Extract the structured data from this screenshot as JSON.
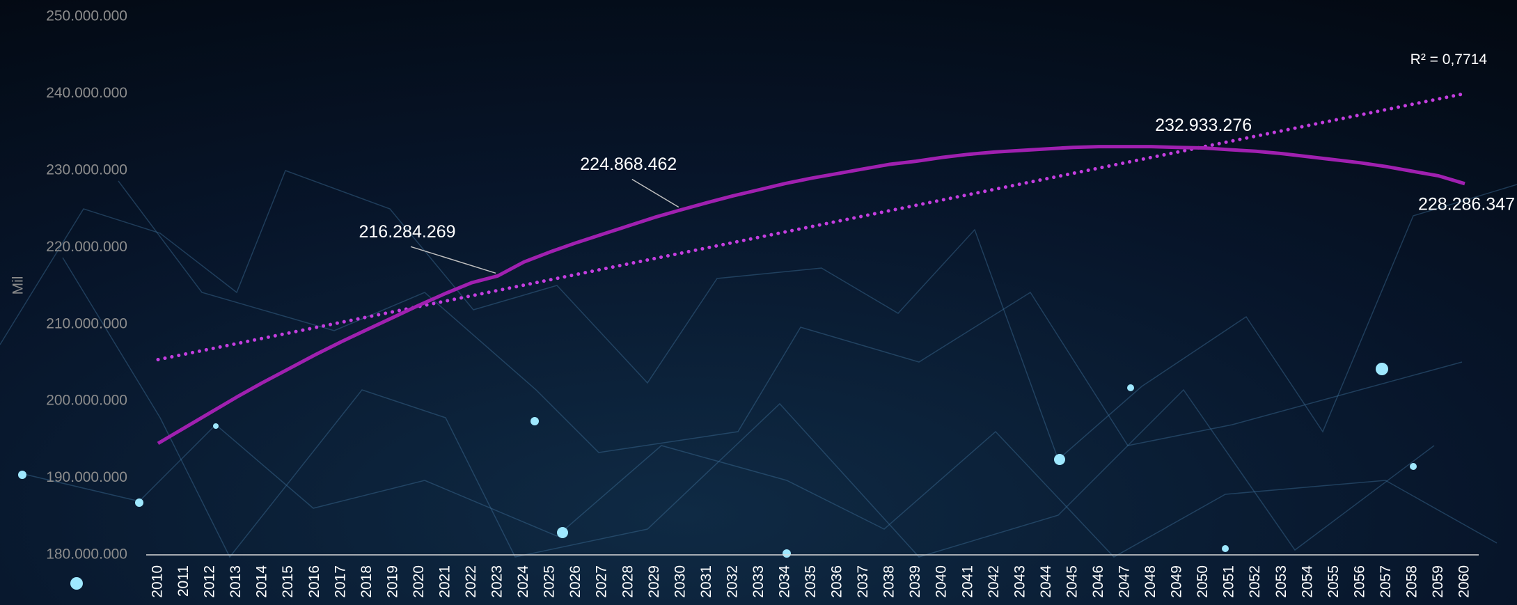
{
  "chart_data": {
    "type": "line",
    "y_axis_label": "Mil",
    "categories": [
      "2010",
      "2011",
      "2012",
      "2013",
      "2014",
      "2015",
      "2016",
      "2017",
      "2018",
      "2019",
      "2020",
      "2021",
      "2022",
      "2023",
      "2024",
      "2025",
      "2026",
      "2027",
      "2028",
      "2029",
      "2030",
      "2031",
      "2032",
      "2033",
      "2034",
      "2035",
      "2036",
      "2037",
      "2038",
      "2039",
      "2040",
      "2041",
      "2042",
      "2043",
      "2044",
      "2045",
      "2046",
      "2047",
      "2048",
      "2049",
      "2050",
      "2051",
      "2052",
      "2053",
      "2054",
      "2055",
      "2056",
      "2057",
      "2058",
      "2059",
      "2060"
    ],
    "values": [
      194500000,
      196500000,
      198500000,
      200500000,
      202400000,
      204200000,
      206000000,
      207700000,
      209300000,
      210900000,
      212500000,
      214000000,
      215400000,
      216284269,
      218100000,
      219400000,
      220600000,
      221700000,
      222800000,
      223900000,
      224868462,
      225800000,
      226700000,
      227500000,
      228300000,
      229000000,
      229600000,
      230200000,
      230800000,
      231200000,
      231700000,
      232100000,
      232400000,
      232600000,
      232800000,
      233000000,
      233100000,
      233100000,
      233100000,
      233000000,
      232933276,
      232700000,
      232500000,
      232200000,
      231800000,
      231400000,
      231000000,
      230500000,
      229900000,
      229300000,
      228286347
    ],
    "value_labels": [
      null,
      null,
      null,
      null,
      null,
      null,
      null,
      null,
      null,
      null,
      null,
      null,
      null,
      "216.284.269",
      null,
      null,
      null,
      null,
      null,
      null,
      "224.868.462",
      null,
      null,
      null,
      null,
      null,
      null,
      null,
      null,
      null,
      null,
      null,
      null,
      null,
      null,
      null,
      null,
      null,
      null,
      null,
      "232.933.276",
      null,
      null,
      null,
      null,
      null,
      null,
      null,
      null,
      null,
      "228.286.347"
    ],
    "color": "#a020b0",
    "trendline": {
      "values": [
        205400000,
        240000000
      ],
      "color": "#c43ee0",
      "style": "dotted",
      "r2_label": "R² = 0,7714"
    },
    "ylim": [
      180000000,
      250000000
    ],
    "yticks": [
      {
        "value": 180000000,
        "label": "180.000.000"
      },
      {
        "value": 190000000,
        "label": "190.000.000"
      },
      {
        "value": 200000000,
        "label": "200.000.000"
      },
      {
        "value": 210000000,
        "label": "210.000.000"
      },
      {
        "value": 220000000,
        "label": "220.000.000"
      },
      {
        "value": 230000000,
        "label": "230.000.000"
      },
      {
        "value": 240000000,
        "label": "240.000.000"
      },
      {
        "value": 250000000,
        "label": "250.000.000"
      }
    ],
    "grid": false
  }
}
